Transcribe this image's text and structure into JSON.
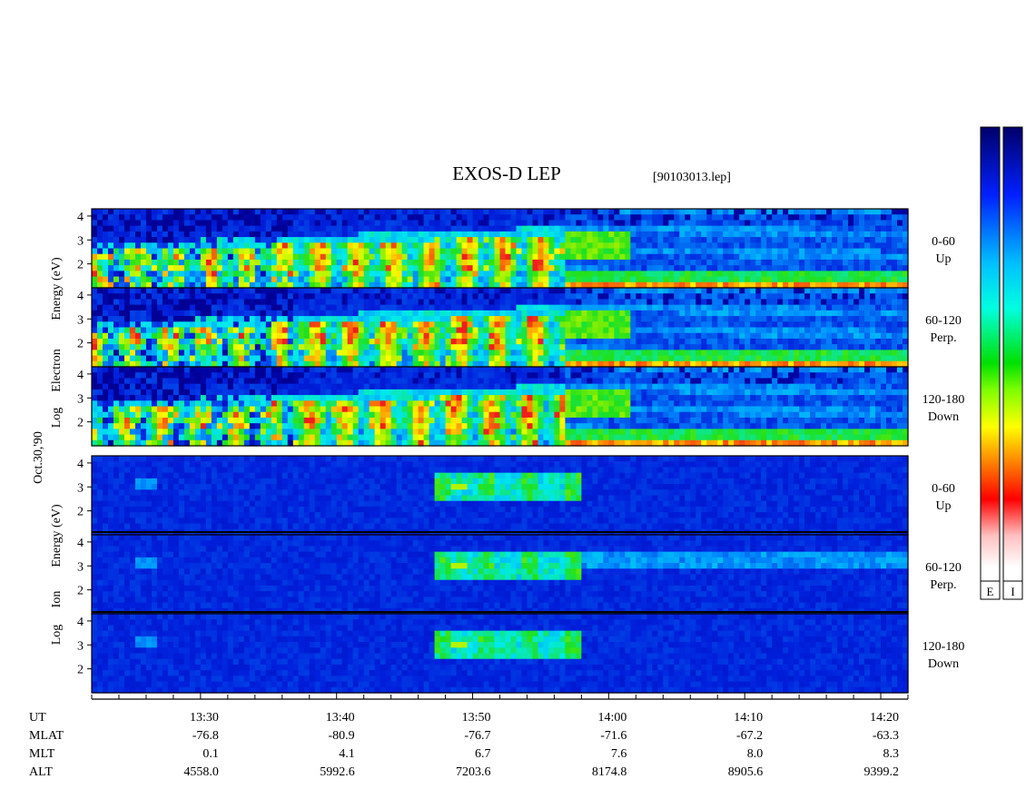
{
  "chart_data": {
    "type": "heatmap",
    "title": "EXOS-D LEP",
    "file_label": "[90103013.lep]",
    "date_label": "Oct.30,'90",
    "electron": {
      "ylabel": "Log Electron Energy (eV)",
      "ylabel_parts": [
        "Log",
        "Electron",
        "Energy (eV)"
      ]
    },
    "ion": {
      "ylabel": "Log Ion Energy (eV)",
      "ylabel_parts": [
        "Log",
        "Ion",
        "Energy (eV)"
      ]
    },
    "panels": [
      {
        "group": "electron",
        "pitch": "0-60",
        "dir": "Up"
      },
      {
        "group": "electron",
        "pitch": "60-120",
        "dir": "Perp."
      },
      {
        "group": "electron",
        "pitch": "120-180",
        "dir": "Down"
      },
      {
        "group": "ion",
        "pitch": "0-60",
        "dir": "Up"
      },
      {
        "group": "ion",
        "pitch": "60-120",
        "dir": "Perp."
      },
      {
        "group": "ion",
        "pitch": "120-180",
        "dir": "Down"
      }
    ],
    "y_ticks": [
      "4",
      "3",
      "2"
    ],
    "ylim": [
      1,
      4.3
    ],
    "xlim": [
      "13:22",
      "14:22"
    ],
    "row_labels": [
      "UT",
      "MLAT",
      "MLT",
      "ALT"
    ],
    "ticks": [
      {
        "UT": "13:30",
        "MLAT": "-76.8",
        "MLT": "0.1",
        "ALT": "4558.0"
      },
      {
        "UT": "13:40",
        "MLAT": "-80.9",
        "MLT": "4.1",
        "ALT": "5992.6"
      },
      {
        "UT": "13:50",
        "MLAT": "-76.7",
        "MLT": "6.7",
        "ALT": "7203.6"
      },
      {
        "UT": "14:00",
        "MLAT": "-71.6",
        "MLT": "7.6",
        "ALT": "8174.8"
      },
      {
        "UT": "14:10",
        "MLAT": "-67.2",
        "MLT": "8.0",
        "ALT": "8905.6"
      },
      {
        "UT": "14:20",
        "MLAT": "-63.3",
        "MLT": "8.3",
        "ALT": "9399.2"
      }
    ],
    "colorbars": [
      {
        "label": "E"
      },
      {
        "label": "I"
      }
    ],
    "colors": {
      "background": "#0020c8",
      "low": "#00009a",
      "mid": "#00e0ff",
      "green": "#20e020",
      "yellow": "#ffff00",
      "high": "#ff2020"
    }
  }
}
